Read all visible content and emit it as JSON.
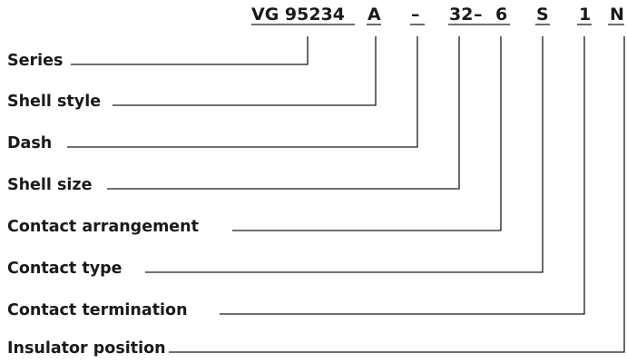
{
  "code": {
    "series": "VG 95234",
    "shell_style": "A",
    "dash": "–",
    "shell_size": "32",
    "sep": "–",
    "contact_arrangement": "6",
    "contact_type": "S",
    "contact_termination": "1",
    "insulator_position": "N"
  },
  "fields": [
    "Series",
    "Shell style",
    "Dash",
    "Shell size",
    "Contact arrangement",
    "Contact type",
    "Contact termination",
    "Insulator position"
  ]
}
